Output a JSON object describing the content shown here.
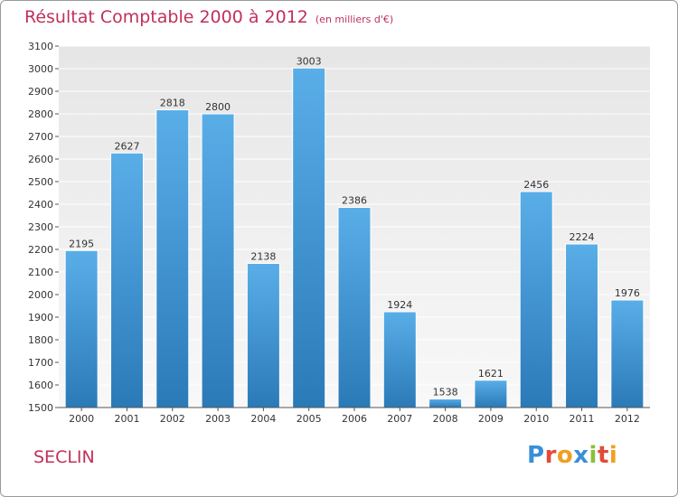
{
  "chart_data": {
    "type": "bar",
    "title": "Résultat Comptable 2000 à 2012",
    "subtitle": "(en milliers d'€)",
    "categories": [
      "2000",
      "2001",
      "2002",
      "2003",
      "2004",
      "2005",
      "2006",
      "2007",
      "2008",
      "2009",
      "2010",
      "2011",
      "2012"
    ],
    "values": [
      2195,
      2627,
      2818,
      2800,
      2138,
      3003,
      2386,
      1924,
      1538,
      1621,
      2456,
      2224,
      1976
    ],
    "ylim": [
      1500,
      3100
    ],
    "yticks": [
      1500,
      1600,
      1700,
      1800,
      1900,
      2000,
      2100,
      2200,
      2300,
      2400,
      2500,
      2600,
      2700,
      2800,
      2900,
      3000,
      3100
    ],
    "xlabel": "",
    "ylabel": "",
    "grid": true,
    "colors": {
      "bar_top": "#5aaee8",
      "bar_bottom": "#2a7ab8",
      "plot_bg_top": "#e6e6e6",
      "plot_bg_bottom": "#f8f8f8",
      "title": "#c0305a"
    }
  },
  "footer": {
    "town": "SECLIN",
    "logo_letters": [
      {
        "ch": "P",
        "color": "#3a8fd6"
      },
      {
        "ch": "r",
        "color": "#e24a3a"
      },
      {
        "ch": "o",
        "color": "#f0a020"
      },
      {
        "ch": "x",
        "color": "#3a8fd6"
      },
      {
        "ch": "i",
        "color": "#8ac03a"
      },
      {
        "ch": "t",
        "color": "#e24a3a"
      },
      {
        "ch": "i",
        "color": "#f0a020"
      }
    ]
  }
}
